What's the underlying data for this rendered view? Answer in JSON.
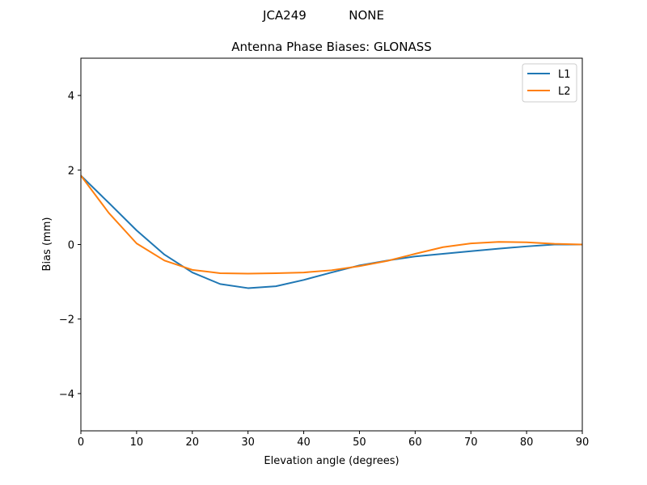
{
  "chart_data": {
    "type": "line",
    "suptitle": "JCA249           NONE",
    "title": "Antenna Phase Biases: GLONASS",
    "xlabel": "Elevation angle (degrees)",
    "ylabel": "Bias (mm)",
    "xlim": [
      0,
      90
    ],
    "ylim": [
      -5,
      5
    ],
    "xticks": [
      0,
      10,
      20,
      30,
      40,
      50,
      60,
      70,
      80,
      90
    ],
    "yticks": [
      -4,
      -2,
      0,
      2,
      4
    ],
    "ytick_labels": [
      "−4",
      "−2",
      "0",
      "2",
      "4"
    ],
    "grid": false,
    "legend_position": "top-right",
    "x": [
      0,
      5,
      10,
      15,
      20,
      25,
      30,
      35,
      40,
      45,
      50,
      55,
      60,
      65,
      70,
      75,
      80,
      85,
      90
    ],
    "series": [
      {
        "name": "L1",
        "color": "#1f77b4",
        "values": [
          1.85,
          1.12,
          0.38,
          -0.27,
          -0.75,
          -1.06,
          -1.17,
          -1.12,
          -0.95,
          -0.75,
          -0.56,
          -0.43,
          -0.32,
          -0.25,
          -0.18,
          -0.11,
          -0.05,
          0.0,
          0.0
        ]
      },
      {
        "name": "L2",
        "color": "#ff7f0e",
        "values": [
          1.85,
          0.85,
          0.03,
          -0.43,
          -0.68,
          -0.77,
          -0.78,
          -0.77,
          -0.75,
          -0.69,
          -0.58,
          -0.44,
          -0.25,
          -0.07,
          0.03,
          0.07,
          0.06,
          0.02,
          0.0
        ]
      }
    ]
  }
}
